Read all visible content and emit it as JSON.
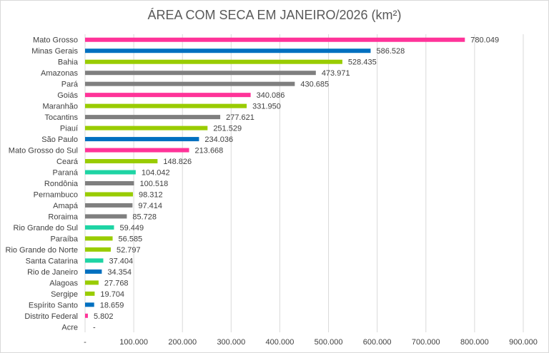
{
  "chart_data": {
    "type": "bar",
    "orientation": "horizontal",
    "title": "ÁREA COM SECA EM JANEIRO/2026 (km²)",
    "xlabel": "",
    "ylabel": "",
    "xlim": [
      0,
      900000
    ],
    "grid": true,
    "legend": "none",
    "x_tick_labels": [
      "-",
      "100.000",
      "200.000",
      "300.000",
      "400.000",
      "500.000",
      "600.000",
      "700.000",
      "800.000",
      "900.000"
    ],
    "colors": {
      "pink": "#ff3399",
      "blue": "#0070c0",
      "lime": "#99cc00",
      "gray": "#7f7f7f",
      "teal": "#1ed4a4"
    },
    "categories": [
      "Mato Grosso",
      "Minas Gerais",
      "Bahia",
      "Amazonas",
      "Pará",
      "Goiás",
      "Maranhão",
      "Tocantins",
      "Piauí",
      "São Paulo",
      "Mato Grosso do Sul",
      "Ceará",
      "Paraná",
      "Rondônia",
      "Pernambuco",
      "Amapá",
      "Roraima",
      "Rio Grande do Sul",
      "Paraíba",
      "Rio Grande do Norte",
      "Santa Catarina",
      "Rio de Janeiro",
      "Alagoas",
      "Sergipe",
      "Espírito Santo",
      "Distrito Federal",
      "Acre"
    ],
    "values": [
      780049,
      586528,
      528435,
      473971,
      430685,
      340086,
      331950,
      277621,
      251529,
      234036,
      213668,
      148826,
      104042,
      100518,
      98312,
      97414,
      85728,
      59449,
      56585,
      52797,
      37404,
      34354,
      27768,
      19704,
      18659,
      5802,
      0
    ],
    "data_labels": [
      "780.049",
      "586.528",
      "528.435",
      "473.971",
      "430.685",
      "340.086",
      "331.950",
      "277.621",
      "251.529",
      "234.036",
      "213.668",
      "148.826",
      "104.042",
      "100.518",
      "98.312",
      "97.414",
      "85.728",
      "59.449",
      "56.585",
      "52.797",
      "37.404",
      "34.354",
      "27.768",
      "19.704",
      "18.659",
      "5.802",
      "-"
    ],
    "bar_colors": [
      "pink",
      "blue",
      "lime",
      "gray",
      "gray",
      "pink",
      "lime",
      "gray",
      "lime",
      "blue",
      "pink",
      "lime",
      "teal",
      "gray",
      "lime",
      "gray",
      "gray",
      "teal",
      "lime",
      "lime",
      "teal",
      "blue",
      "lime",
      "lime",
      "blue",
      "pink",
      "gray"
    ]
  }
}
